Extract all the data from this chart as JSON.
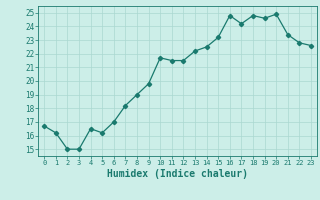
{
  "x": [
    0,
    1,
    2,
    3,
    4,
    5,
    6,
    7,
    8,
    9,
    10,
    11,
    12,
    13,
    14,
    15,
    16,
    17,
    18,
    19,
    20,
    21,
    22,
    23
  ],
  "y": [
    16.7,
    16.2,
    15.0,
    15.0,
    16.5,
    16.2,
    17.0,
    18.2,
    19.0,
    19.8,
    21.7,
    21.5,
    21.5,
    22.2,
    22.5,
    23.2,
    24.8,
    24.2,
    24.8,
    24.6,
    24.9,
    23.4,
    22.8,
    22.6
  ],
  "line_color": "#1a7a6e",
  "marker": "D",
  "marker_size": 2.2,
  "bg_color": "#cceee8",
  "grid_color": "#aad8d0",
  "tick_color": "#1a7a6e",
  "xlabel": "Humidex (Indice chaleur)",
  "xlabel_fontsize": 7,
  "ylabel_ticks": [
    15,
    16,
    17,
    18,
    19,
    20,
    21,
    22,
    23,
    24,
    25
  ],
  "ylim": [
    14.5,
    25.5
  ],
  "xlim": [
    -0.5,
    23.5
  ],
  "linewidth": 0.9
}
